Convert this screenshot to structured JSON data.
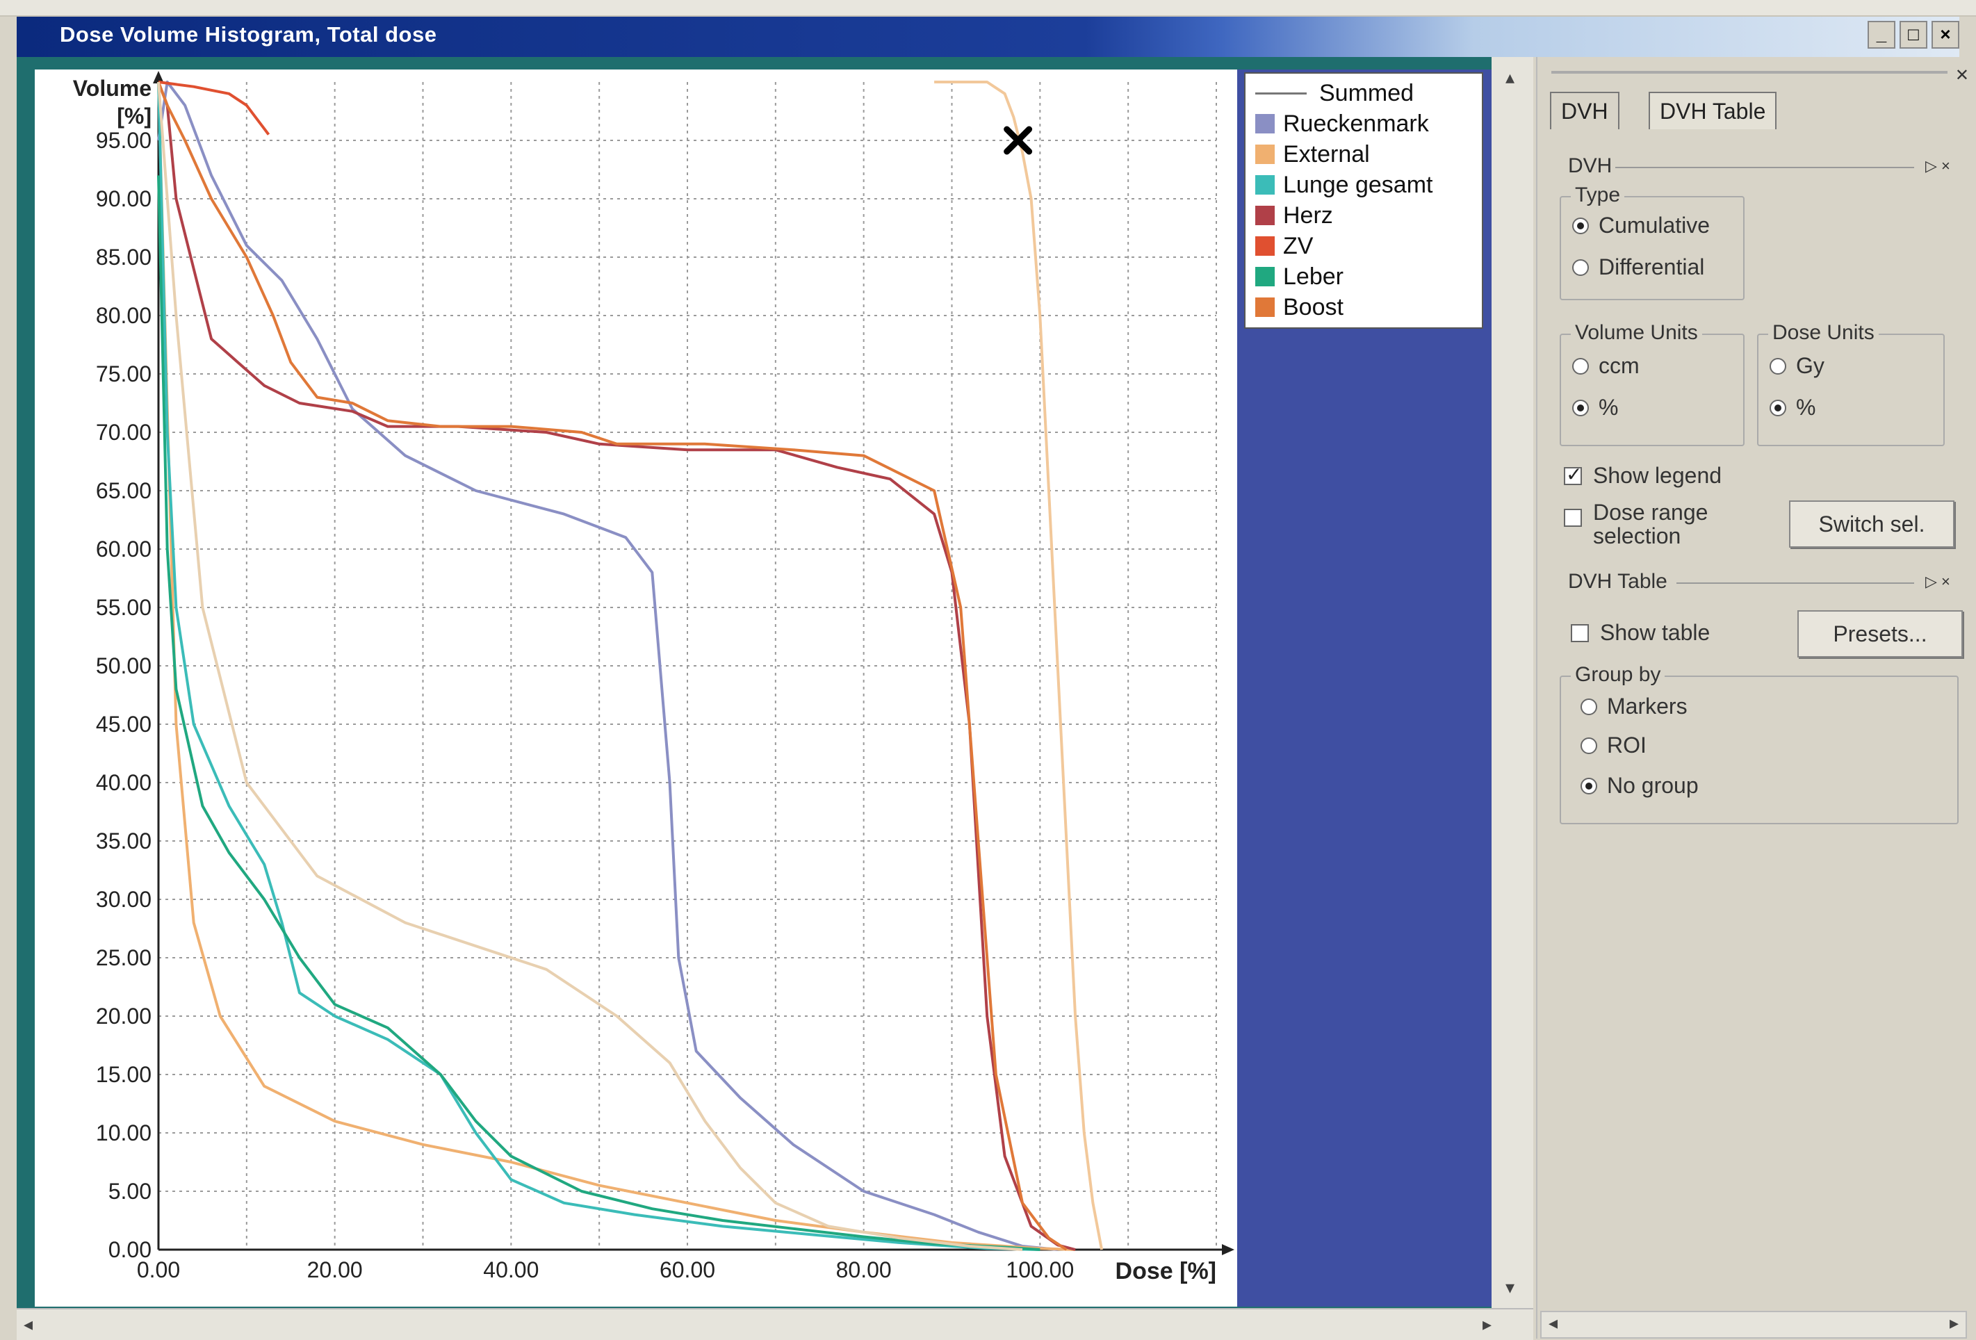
{
  "window": {
    "title": "Dose Volume Histogram, Total dose",
    "buttons": {
      "minimize": "_",
      "maximize": "□",
      "close": "×"
    }
  },
  "chart_data": {
    "type": "line",
    "xlabel": "Dose [%]",
    "ylabel_line1": "Volume",
    "ylabel_line2": "[%]",
    "xlim": [
      0,
      120
    ],
    "ylim": [
      0,
      100
    ],
    "x_ticks": [
      "0.00",
      "20.00",
      "40.00",
      "60.00",
      "80.00",
      "100.00"
    ],
    "y_ticks": [
      "0.00",
      "5.00",
      "10.00",
      "15.00",
      "20.00",
      "25.00",
      "30.00",
      "35.00",
      "40.00",
      "45.00",
      "50.00",
      "55.00",
      "60.00",
      "65.00",
      "70.00",
      "75.00",
      "80.00",
      "85.00",
      "90.00",
      "95.00"
    ],
    "grid": true,
    "legend_position": "right",
    "marker": {
      "x": 97.5,
      "y": 95
    },
    "series": [
      {
        "name": "Rueckenmark",
        "color": "#8a8fc4",
        "points": [
          [
            0,
            95
          ],
          [
            1,
            100
          ],
          [
            3,
            98
          ],
          [
            6,
            92
          ],
          [
            10,
            86
          ],
          [
            14,
            83
          ],
          [
            18,
            78
          ],
          [
            22,
            72
          ],
          [
            28,
            68
          ],
          [
            36,
            65
          ],
          [
            46,
            63
          ],
          [
            53,
            61
          ],
          [
            56,
            58
          ],
          [
            58,
            40
          ],
          [
            59,
            25
          ],
          [
            61,
            17
          ],
          [
            66,
            13
          ],
          [
            72,
            9
          ],
          [
            80,
            5
          ],
          [
            88,
            3
          ],
          [
            93,
            1.5
          ],
          [
            98,
            0.3
          ],
          [
            102,
            0
          ]
        ]
      },
      {
        "name": "External",
        "color": "#f0b070",
        "points": [
          [
            0,
            100
          ],
          [
            1,
            72
          ],
          [
            2,
            45
          ],
          [
            4,
            28
          ],
          [
            7,
            20
          ],
          [
            12,
            14
          ],
          [
            20,
            11
          ],
          [
            30,
            9
          ],
          [
            40,
            7.5
          ],
          [
            50,
            5.5
          ],
          [
            60,
            4
          ],
          [
            70,
            2.5
          ],
          [
            80,
            1.5
          ],
          [
            90,
            0.6
          ],
          [
            100,
            0.1
          ],
          [
            104,
            0
          ]
        ]
      },
      {
        "name": "Lunge gesamt",
        "color": "#3bbcb8",
        "points": [
          [
            0,
            100
          ],
          [
            1,
            70
          ],
          [
            2,
            55
          ],
          [
            4,
            45
          ],
          [
            8,
            38
          ],
          [
            12,
            33
          ],
          [
            14,
            28
          ],
          [
            16,
            22
          ],
          [
            20,
            20
          ],
          [
            26,
            18
          ],
          [
            32,
            15
          ],
          [
            36,
            10
          ],
          [
            40,
            6
          ],
          [
            46,
            4
          ],
          [
            54,
            3
          ],
          [
            64,
            2
          ],
          [
            74,
            1.3
          ],
          [
            84,
            0.6
          ],
          [
            94,
            0.1
          ],
          [
            100,
            0
          ]
        ]
      },
      {
        "name": "Herz",
        "color": "#b04048",
        "points": [
          [
            0,
            100
          ],
          [
            1,
            98
          ],
          [
            2,
            90
          ],
          [
            4,
            84
          ],
          [
            6,
            78
          ],
          [
            9,
            76
          ],
          [
            12,
            74
          ],
          [
            16,
            72.5
          ],
          [
            22,
            71.8
          ],
          [
            26,
            70.5
          ],
          [
            34,
            70.5
          ],
          [
            44,
            70
          ],
          [
            50,
            69
          ],
          [
            60,
            68.5
          ],
          [
            70,
            68.5
          ],
          [
            77,
            67
          ],
          [
            83,
            66
          ],
          [
            88,
            63
          ],
          [
            90,
            58
          ],
          [
            92,
            45
          ],
          [
            94,
            20
          ],
          [
            96,
            8
          ],
          [
            99,
            2
          ],
          [
            102,
            0.4
          ],
          [
            104,
            0
          ]
        ]
      },
      {
        "name": "ZV",
        "color": "#e05030",
        "points": [
          [
            0,
            100
          ],
          [
            2,
            99.8
          ],
          [
            4,
            99.6
          ],
          [
            6,
            99.3
          ],
          [
            8,
            99
          ],
          [
            9,
            98.5
          ],
          [
            10,
            98
          ],
          [
            11,
            97
          ],
          [
            12,
            96
          ],
          [
            12.5,
            95.5
          ]
        ]
      },
      {
        "name": "Leber",
        "color": "#20a880",
        "points": [
          [
            0,
            92
          ],
          [
            1,
            60
          ],
          [
            2,
            48
          ],
          [
            5,
            38
          ],
          [
            8,
            34
          ],
          [
            12,
            30
          ],
          [
            16,
            25
          ],
          [
            20,
            21
          ],
          [
            26,
            19
          ],
          [
            32,
            15
          ],
          [
            36,
            11
          ],
          [
            40,
            8
          ],
          [
            48,
            5
          ],
          [
            56,
            3.5
          ],
          [
            64,
            2.5
          ],
          [
            72,
            1.8
          ],
          [
            80,
            1.1
          ],
          [
            88,
            0.5
          ],
          [
            96,
            0.2
          ],
          [
            100,
            0
          ]
        ]
      },
      {
        "name": "Boost",
        "color": "#e07838",
        "points": [
          [
            0,
            100
          ],
          [
            1,
            98
          ],
          [
            3,
            95
          ],
          [
            6,
            90
          ],
          [
            10,
            85
          ],
          [
            13,
            80
          ],
          [
            15,
            76
          ],
          [
            18,
            73
          ],
          [
            22,
            72.5
          ],
          [
            26,
            71
          ],
          [
            32,
            70.5
          ],
          [
            40,
            70.5
          ],
          [
            48,
            70
          ],
          [
            52,
            69
          ],
          [
            62,
            69
          ],
          [
            72,
            68.5
          ],
          [
            80,
            68
          ],
          [
            88,
            65
          ],
          [
            91,
            55
          ],
          [
            93,
            35
          ],
          [
            95,
            15
          ],
          [
            98,
            4
          ],
          [
            101,
            1
          ],
          [
            103,
            0
          ]
        ]
      },
      {
        "name": "Summed",
        "color": "#e8d0b0",
        "points": [
          [
            0,
            100
          ],
          [
            2,
            80
          ],
          [
            5,
            55
          ],
          [
            10,
            40
          ],
          [
            18,
            32
          ],
          [
            28,
            28
          ],
          [
            36,
            26
          ],
          [
            44,
            24
          ],
          [
            52,
            20
          ],
          [
            58,
            16
          ],
          [
            62,
            11
          ],
          [
            66,
            7
          ],
          [
            70,
            4
          ],
          [
            76,
            2
          ],
          [
            84,
            1
          ],
          [
            92,
            0.3
          ],
          [
            98,
            0
          ]
        ]
      },
      {
        "name": "External",
        "color": "#f2c89a",
        "points": [
          [
            88,
            100
          ],
          [
            94,
            100
          ],
          [
            96,
            99
          ],
          [
            97,
            97
          ],
          [
            98,
            94
          ],
          [
            99,
            90
          ],
          [
            100,
            80
          ],
          [
            101,
            65
          ],
          [
            102,
            50
          ],
          [
            103,
            35
          ],
          [
            104,
            20
          ],
          [
            105,
            10
          ],
          [
            106,
            4
          ],
          [
            107,
            0
          ]
        ]
      }
    ]
  },
  "legend": {
    "summed_label": "Summed",
    "items": [
      {
        "label": "Rueckenmark",
        "color": "#8a8fc4"
      },
      {
        "label": "External",
        "color": "#f0b070"
      },
      {
        "label": "Lunge gesamt",
        "color": "#3bbcb8"
      },
      {
        "label": "Herz",
        "color": "#b04048"
      },
      {
        "label": "ZV",
        "color": "#e05030"
      },
      {
        "label": "Leber",
        "color": "#20a880"
      },
      {
        "label": "Boost",
        "color": "#e07838"
      }
    ]
  },
  "panel": {
    "tabs": [
      "DVH",
      "DVH Table"
    ],
    "dvh_section": "DVH",
    "type_group": "Type",
    "type_options": [
      "Cumulative",
      "Differential"
    ],
    "type_selected": "Cumulative",
    "volume_units_group": "Volume Units",
    "volume_units_options": [
      "ccm",
      "%"
    ],
    "volume_units_selected": "%",
    "dose_units_group": "Dose Units",
    "dose_units_options": [
      "Gy",
      "%"
    ],
    "dose_units_selected": "%",
    "show_legend_label": "Show legend",
    "show_legend_checked": true,
    "dose_range_label_1": "Dose range",
    "dose_range_label_2": "selection",
    "dose_range_checked": false,
    "switch_sel_label": "Switch sel.",
    "table_section": "DVH Table",
    "show_table_label": "Show table",
    "show_table_checked": false,
    "presets_label": "Presets...",
    "group_by_group": "Group by",
    "group_by_options": [
      "Markers",
      "ROI",
      "No group"
    ],
    "group_by_selected": "No group",
    "section_controls": "▷ ×"
  }
}
